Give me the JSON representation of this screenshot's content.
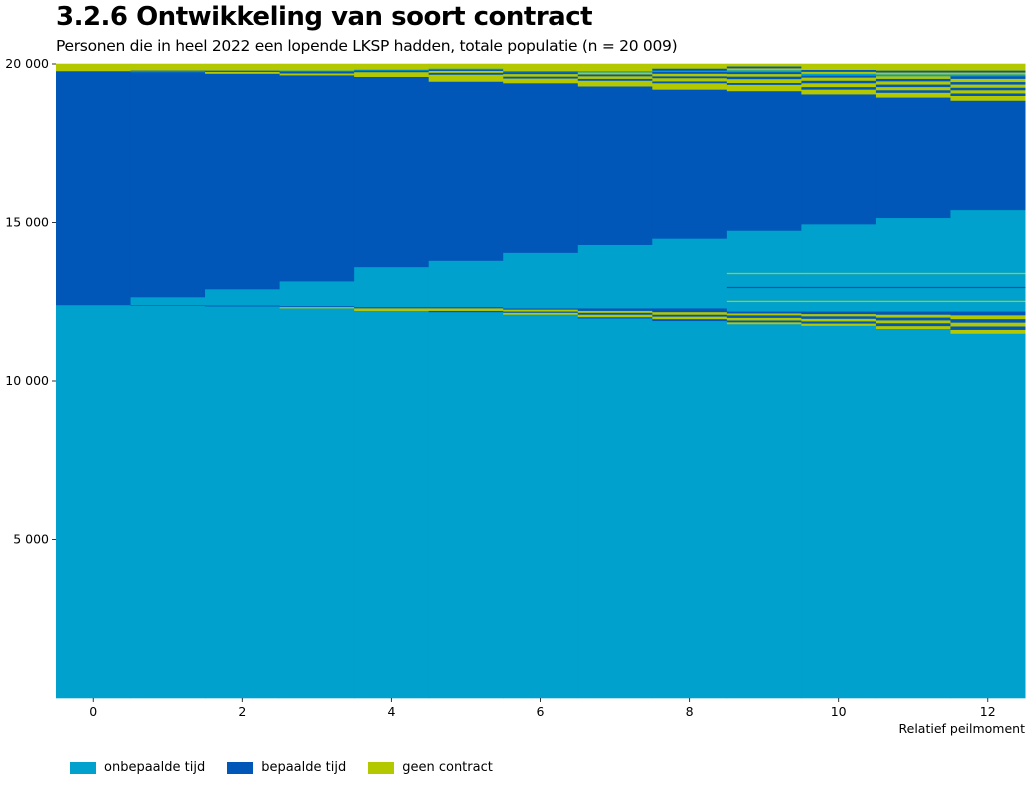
{
  "title": "3.2.6 Ontwikkeling van soort contract",
  "subtitle": "Personen die in heel 2022 een lopende LKSP hadden, totale populatie (n = 20 009)",
  "chart_data": {
    "type": "bar",
    "subtype": "stacked-transition",
    "xlabel": "Relatief peilmoment",
    "ylabel": "",
    "xlim": [
      -0.5,
      12.5
    ],
    "ylim": [
      0,
      20009
    ],
    "x_ticks": [
      0,
      2,
      4,
      6,
      8,
      10,
      12
    ],
    "x_tick_labels": [
      "0",
      "2",
      "4",
      "6",
      "8",
      "10",
      "12"
    ],
    "y_ticks": [
      5000,
      10000,
      15000,
      20000
    ],
    "y_tick_labels": [
      "5 000",
      "10 000",
      "15 000",
      "20 000"
    ],
    "legend_position": "bottom-left",
    "categories": [
      {
        "name": "onbepaalde tijd",
        "color": "#00a1cd"
      },
      {
        "name": "bepaalde tijd",
        "color": "#0057b7"
      },
      {
        "name": "geen contract",
        "color": "#b4c800"
      }
    ],
    "x": [
      0,
      1,
      2,
      3,
      4,
      5,
      6,
      7,
      8,
      9,
      10,
      11,
      12
    ],
    "stacks": [
      [
        [
          0,
          12400
        ],
        [
          1,
          7380
        ],
        [
          2,
          229
        ]
      ],
      [
        [
          0,
          12380
        ],
        [
          1,
          20
        ],
        [
          0,
          250
        ],
        [
          1,
          7100
        ],
        [
          0,
          30
        ],
        [
          1,
          20
        ],
        [
          2,
          209
        ]
      ],
      [
        [
          0,
          12360
        ],
        [
          1,
          30
        ],
        [
          0,
          510
        ],
        [
          1,
          6800
        ],
        [
          2,
          60
        ],
        [
          1,
          40
        ],
        [
          2,
          209
        ]
      ],
      [
        [
          0,
          12300
        ],
        [
          2,
          40
        ],
        [
          1,
          30
        ],
        [
          0,
          780
        ],
        [
          1,
          6500
        ],
        [
          2,
          60
        ],
        [
          1,
          60
        ],
        [
          0,
          30
        ],
        [
          2,
          209
        ]
      ],
      [
        [
          0,
          12220
        ],
        [
          2,
          80
        ],
        [
          1,
          40
        ],
        [
          0,
          1260
        ],
        [
          1,
          6000
        ],
        [
          2,
          150
        ],
        [
          1,
          50
        ],
        [
          0,
          30
        ],
        [
          2,
          179
        ]
      ],
      [
        [
          0,
          12180
        ],
        [
          1,
          40
        ],
        [
          2,
          80
        ],
        [
          1,
          40
        ],
        [
          0,
          1460
        ],
        [
          1,
          5650
        ],
        [
          2,
          220
        ],
        [
          1,
          60
        ],
        [
          2,
          60
        ],
        [
          1,
          40
        ],
        [
          0,
          30
        ],
        [
          2,
          149
        ]
      ],
      [
        [
          0,
          12100
        ],
        [
          2,
          60
        ],
        [
          1,
          40
        ],
        [
          2,
          60
        ],
        [
          1,
          40
        ],
        [
          0,
          1750
        ],
        [
          1,
          5350
        ],
        [
          2,
          150
        ],
        [
          1,
          60
        ],
        [
          2,
          80
        ],
        [
          1,
          60
        ],
        [
          0,
          40
        ],
        [
          2,
          219
        ]
      ],
      [
        [
          0,
          11980
        ],
        [
          1,
          40
        ],
        [
          2,
          80
        ],
        [
          1,
          60
        ],
        [
          2,
          60
        ],
        [
          1,
          80
        ],
        [
          0,
          2000
        ],
        [
          1,
          5000
        ],
        [
          2,
          180
        ],
        [
          1,
          60
        ],
        [
          2,
          80
        ],
        [
          1,
          60
        ],
        [
          2,
          60
        ],
        [
          0,
          40
        ],
        [
          2,
          229
        ]
      ],
      [
        [
          0,
          11900
        ],
        [
          1,
          60
        ],
        [
          2,
          80
        ],
        [
          1,
          60
        ],
        [
          2,
          80
        ],
        [
          1,
          120
        ],
        [
          0,
          2200
        ],
        [
          1,
          4700
        ],
        [
          2,
          200
        ],
        [
          1,
          60
        ],
        [
          2,
          100
        ],
        [
          1,
          60
        ],
        [
          2,
          80
        ],
        [
          1,
          60
        ],
        [
          0,
          40
        ],
        [
          1,
          60
        ],
        [
          2,
          149
        ]
      ],
      [
        [
          0,
          11800
        ],
        [
          2,
          60
        ],
        [
          1,
          60
        ],
        [
          2,
          80
        ],
        [
          1,
          80
        ],
        [
          2,
          60
        ],
        [
          1,
          60
        ],
        [
          0,
          300
        ],
        [
          2,
          40
        ],
        [
          0,
          400
        ],
        [
          1,
          40
        ],
        [
          0,
          400
        ],
        [
          2,
          40
        ],
        [
          0,
          1330
        ],
        [
          1,
          4400
        ],
        [
          2,
          200
        ],
        [
          1,
          60
        ],
        [
          2,
          120
        ],
        [
          1,
          80
        ],
        [
          2,
          80
        ],
        [
          1,
          60
        ],
        [
          0,
          60
        ],
        [
          2,
          60
        ],
        [
          1,
          60
        ],
        [
          2,
          79
        ]
      ],
      [
        [
          0,
          11750
        ],
        [
          2,
          70
        ],
        [
          1,
          70
        ],
        [
          2,
          80
        ],
        [
          1,
          80
        ],
        [
          2,
          70
        ],
        [
          1,
          80
        ],
        [
          0,
          300
        ],
        [
          2,
          40
        ],
        [
          0,
          400
        ],
        [
          1,
          40
        ],
        [
          0,
          400
        ],
        [
          2,
          40
        ],
        [
          0,
          1530
        ],
        [
          1,
          4100
        ],
        [
          2,
          150
        ],
        [
          1,
          80
        ],
        [
          2,
          120
        ],
        [
          1,
          80
        ],
        [
          2,
          100
        ],
        [
          1,
          60
        ],
        [
          0,
          60
        ],
        [
          2,
          60
        ],
        [
          1,
          60
        ],
        [
          2,
          189
        ]
      ],
      [
        [
          0,
          11650
        ],
        [
          2,
          90
        ],
        [
          1,
          90
        ],
        [
          2,
          90
        ],
        [
          1,
          90
        ],
        [
          2,
          90
        ],
        [
          1,
          100
        ],
        [
          0,
          300
        ],
        [
          2,
          40
        ],
        [
          0,
          400
        ],
        [
          1,
          40
        ],
        [
          0,
          400
        ],
        [
          2,
          40
        ],
        [
          0,
          1730
        ],
        [
          1,
          3800
        ],
        [
          2,
          150
        ],
        [
          1,
          80
        ],
        [
          2,
          100
        ],
        [
          1,
          80
        ],
        [
          2,
          100
        ],
        [
          1,
          80
        ],
        [
          2,
          80
        ],
        [
          0,
          60
        ],
        [
          2,
          60
        ],
        [
          1,
          60
        ],
        [
          2,
          209
        ]
      ],
      [
        [
          0,
          11500
        ],
        [
          2,
          120
        ],
        [
          1,
          110
        ],
        [
          2,
          120
        ],
        [
          1,
          110
        ],
        [
          2,
          120
        ],
        [
          1,
          120
        ],
        [
          0,
          300
        ],
        [
          2,
          40
        ],
        [
          0,
          400
        ],
        [
          1,
          40
        ],
        [
          0,
          400
        ],
        [
          2,
          40
        ],
        [
          0,
          1980
        ],
        [
          1,
          3450
        ],
        [
          2,
          150
        ],
        [
          1,
          80
        ],
        [
          2,
          100
        ],
        [
          1,
          80
        ],
        [
          2,
          100
        ],
        [
          1,
          80
        ],
        [
          2,
          100
        ],
        [
          1,
          80
        ],
        [
          0,
          60
        ],
        [
          2,
          60
        ],
        [
          1,
          60
        ],
        [
          2,
          209
        ]
      ]
    ]
  }
}
